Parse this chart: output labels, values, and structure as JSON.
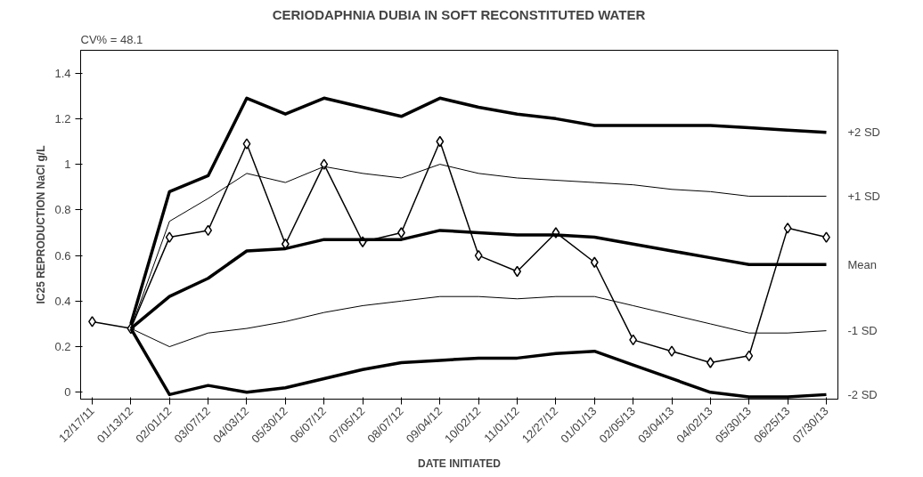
{
  "chart_data": {
    "type": "line",
    "title": "CERIODAPHNIA DUBIA IN SOFT RECONSTITUTED WATER",
    "xlabel": "DATE INITIATED",
    "ylabel": "IC25 REPRODUCTION NaCl g/L",
    "annotations": [
      "CV% = 48.1"
    ],
    "categories": [
      "12/17/11",
      "01/13/12",
      "02/01/12",
      "03/07/12",
      "04/03/12",
      "05/30/12",
      "06/07/12",
      "07/05/12",
      "08/07/12",
      "09/04/12",
      "10/02/12",
      "11/01/12",
      "12/27/12",
      "01/01/13",
      "02/05/13",
      "03/04/13",
      "04/02/13",
      "05/30/13",
      "06/25/13",
      "07/30/13"
    ],
    "series": [
      {
        "color": "#000000",
        "marker": "diamond",
        "values": [
          0.31,
          0.28,
          0.68,
          0.71,
          1.09,
          0.65,
          1.0,
          0.66,
          0.7,
          1.1,
          0.6,
          0.53,
          0.7,
          0.57,
          0.23,
          0.18,
          0.13,
          0.16,
          0.72,
          0.68
        ]
      },
      {
        "name": "+2 SD",
        "color": "#000000",
        "marker": "none",
        "values": [
          null,
          0.3,
          0.88,
          0.95,
          1.29,
          1.22,
          1.29,
          1.25,
          1.21,
          1.29,
          1.25,
          1.22,
          1.2,
          1.17,
          1.17,
          1.17,
          1.17,
          1.16,
          1.15,
          1.14
        ]
      },
      {
        "name": "+1 SD",
        "color": "#000000",
        "marker": "none",
        "values": [
          null,
          0.28,
          0.75,
          0.85,
          0.96,
          0.92,
          0.99,
          0.96,
          0.94,
          1.0,
          0.96,
          0.94,
          0.93,
          0.92,
          0.91,
          0.89,
          0.88,
          0.86,
          0.86,
          0.86
        ]
      },
      {
        "name": "Mean",
        "color": "#000000",
        "marker": "none",
        "values": [
          null,
          0.28,
          0.42,
          0.5,
          0.62,
          0.63,
          0.67,
          0.67,
          0.67,
          0.71,
          0.7,
          0.69,
          0.69,
          0.68,
          0.65,
          0.62,
          0.59,
          0.56,
          0.56,
          0.56
        ]
      },
      {
        "name": "-1 SD",
        "color": "#000000",
        "marker": "none",
        "values": [
          null,
          0.28,
          0.2,
          0.26,
          0.28,
          0.31,
          0.35,
          0.38,
          0.4,
          0.42,
          0.42,
          0.41,
          0.42,
          0.42,
          0.38,
          0.34,
          0.3,
          0.26,
          0.26,
          0.27
        ]
      },
      {
        "name": "-2 SD",
        "color": "#000000",
        "marker": "none",
        "values": [
          null,
          0.28,
          -0.01,
          0.03,
          0.0,
          0.02,
          0.06,
          0.1,
          0.13,
          0.14,
          0.15,
          0.15,
          0.17,
          0.18,
          0.12,
          0.06,
          0.0,
          -0.02,
          -0.02,
          -0.01
        ]
      }
    ],
    "ylim": [
      -0.03,
      1.5
    ],
    "yticks": [
      0,
      0.2,
      0.4,
      0.6,
      0.8,
      1,
      1.2,
      1.4
    ],
    "grid": false
  }
}
